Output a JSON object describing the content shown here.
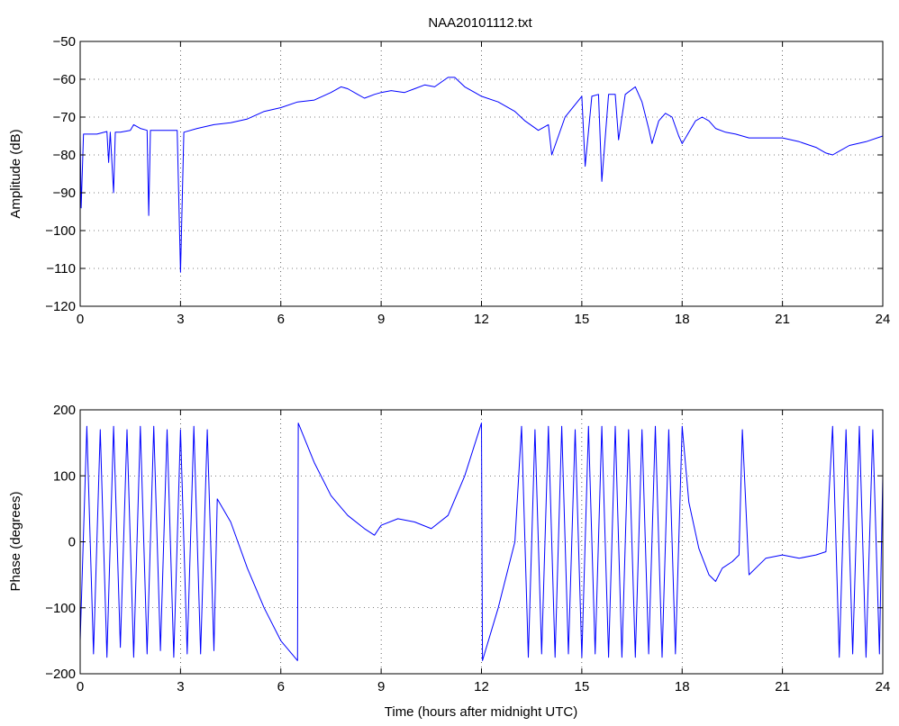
{
  "figure": {
    "title": "NAA20101112.txt",
    "line_color": "#0000ff",
    "axis_color": "#000000",
    "grid": "dotted",
    "background": "#ffffff"
  },
  "chart_data": [
    {
      "type": "line",
      "title": "NAA20101112.txt",
      "xlabel": "",
      "ylabel": "Amplitude (dB)",
      "xlim": [
        0,
        24
      ],
      "ylim": [
        -120,
        -50
      ],
      "xticks": [
        0,
        3,
        6,
        9,
        12,
        15,
        18,
        21,
        24
      ],
      "yticks": [
        -120,
        -110,
        -100,
        -90,
        -80,
        -70,
        -60,
        -50
      ],
      "grid": true,
      "series": [
        {
          "x": [
            0,
            0.03,
            0.1,
            0.5,
            0.8,
            0.85,
            0.9,
            1.0,
            1.05,
            1.2,
            1.5,
            1.6,
            1.8,
            2.0,
            2.05,
            2.1,
            2.5,
            2.9,
            3.0,
            3.1,
            3.5,
            4.0,
            4.5,
            5.0,
            5.5,
            6.0,
            6.5,
            7.0,
            7.5,
            7.8,
            8.0,
            8.3,
            8.5,
            8.8,
            9.0,
            9.3,
            9.7,
            10.0,
            10.3,
            10.6,
            11.0,
            11.2,
            11.5,
            11.8,
            12.0,
            12.5,
            13.0,
            13.3,
            13.7,
            14.0,
            14.1,
            14.5,
            15.0,
            15.1,
            15.3,
            15.5,
            15.6,
            15.8,
            16.0,
            16.1,
            16.3,
            16.6,
            16.8,
            17.0,
            17.1,
            17.3,
            17.5,
            17.7,
            17.9,
            18.0,
            18.2,
            18.4,
            18.6,
            18.8,
            19.0,
            19.3,
            19.6,
            20.0,
            20.5,
            21.0,
            21.5,
            22.0,
            22.3,
            22.5,
            22.7,
            23.0,
            23.5,
            24.0
          ],
          "values": [
            -75,
            -94,
            -74.5,
            -74.5,
            -73.8,
            -82,
            -74,
            -90,
            -74,
            -74,
            -73.5,
            -72,
            -73,
            -73.5,
            -96,
            -73.5,
            -73.5,
            -73.5,
            -111,
            -74,
            -73,
            -72,
            -71.5,
            -70.5,
            -68.5,
            -67.5,
            -66,
            -65.5,
            -63.5,
            -62,
            -62.5,
            -64,
            -65,
            -64,
            -63.5,
            -63,
            -63.5,
            -62.5,
            -61.5,
            -62,
            -59.5,
            -59.5,
            -62,
            -63.5,
            -64.5,
            -66,
            -68.5,
            -71,
            -73.5,
            -72,
            -80,
            -70,
            -64.5,
            -83,
            -64.5,
            -64,
            -87,
            -64,
            -64,
            -76,
            -64,
            -62,
            -66,
            -73,
            -77,
            -71,
            -69,
            -70,
            -75,
            -77,
            -74,
            -71,
            -70,
            -71,
            -73,
            -74,
            -74.5,
            -75.5,
            -75.5,
            -75.5,
            -76.5,
            -78,
            -79.5,
            -80,
            -79,
            -77.5,
            -76.5,
            -75
          ]
        }
      ]
    },
    {
      "type": "line",
      "title": "",
      "xlabel": "Time (hours after midnight UTC)",
      "ylabel": "Phase (degrees)",
      "xlim": [
        0,
        24
      ],
      "ylim": [
        -200,
        200
      ],
      "xticks": [
        0,
        3,
        6,
        9,
        12,
        15,
        18,
        21,
        24
      ],
      "yticks": [
        -200,
        -100,
        0,
        100,
        200
      ],
      "grid": true,
      "series": [
        {
          "x": [
            0,
            0.2,
            0.4,
            0.6,
            0.8,
            1.0,
            1.2,
            1.4,
            1.6,
            1.8,
            2.0,
            2.2,
            2.4,
            2.6,
            2.8,
            3.0,
            3.2,
            3.4,
            3.6,
            3.8,
            4.0,
            4.1,
            4.5,
            5.0,
            5.5,
            6.0,
            6.5,
            6.52,
            7.0,
            7.5,
            8.0,
            8.5,
            8.8,
            9.0,
            9.5,
            10.0,
            10.5,
            11.0,
            11.5,
            12.0,
            12.03,
            12.5,
            13.0,
            13.2,
            13.4,
            13.6,
            13.8,
            14.0,
            14.2,
            14.4,
            14.6,
            14.8,
            15.0,
            15.2,
            15.4,
            15.6,
            15.8,
            16.0,
            16.2,
            16.4,
            16.6,
            16.8,
            17.0,
            17.2,
            17.4,
            17.6,
            17.8,
            18.0,
            18.2,
            18.5,
            18.8,
            19.0,
            19.2,
            19.5,
            19.7,
            19.8,
            20.0,
            20.5,
            21.0,
            21.5,
            22.0,
            22.3,
            22.5,
            22.7,
            22.9,
            23.1,
            23.3,
            23.5,
            23.7,
            23.9,
            24.0
          ],
          "values": [
            -150,
            175,
            -170,
            170,
            -175,
            175,
            -160,
            170,
            -175,
            175,
            -170,
            175,
            -165,
            170,
            -175,
            170,
            -170,
            175,
            -170,
            170,
            -165,
            65,
            30,
            -40,
            -100,
            -150,
            -180,
            180,
            120,
            70,
            40,
            20,
            10,
            25,
            35,
            30,
            20,
            40,
            100,
            180,
            -180,
            -100,
            0,
            175,
            -175,
            170,
            -170,
            175,
            -175,
            175,
            -170,
            170,
            -175,
            175,
            -170,
            175,
            -175,
            175,
            -175,
            170,
            -175,
            170,
            -170,
            175,
            -175,
            170,
            -170,
            175,
            60,
            -10,
            -50,
            -60,
            -40,
            -30,
            -20,
            170,
            -50,
            -25,
            -20,
            -25,
            -20,
            -15,
            175,
            -175,
            170,
            -170,
            175,
            -175,
            170,
            -170,
            100
          ]
        }
      ]
    }
  ]
}
